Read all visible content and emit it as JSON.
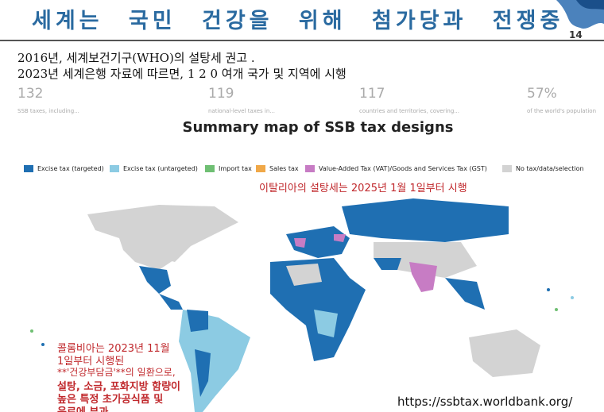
{
  "header": {
    "title": "세계는 국민 건강을 위해 첨가당과 전쟁중",
    "page_number": "14"
  },
  "body": {
    "lines": [
      "2016년, 세계보건기구(WHO)의 설탕세 권고 .",
      "2023년 세계은행 자료에 따르면, 1 2 0 여개 국가 및 지역에 시행"
    ]
  },
  "stats": [
    {
      "number": "132",
      "label": "SSB taxes, including..."
    },
    {
      "number": "119",
      "label": "national-level taxes in..."
    },
    {
      "number": "117",
      "label": "countries and territories, covering..."
    },
    {
      "number": "57%",
      "label": "of the world's population"
    }
  ],
  "map": {
    "title": "Summary map of SSB tax designs",
    "legend": [
      "Excise tax (targeted)",
      "Excise tax (untargeted)",
      "Import tax",
      "Sales tax",
      "Value-Added Tax (VAT)/Goods and Services Tax (GST)",
      "No tax/data/selection"
    ]
  },
  "annotations": {
    "italy": "이탈리아의 설탕세는 2025년 1월 1일부터 시행",
    "colombia": [
      "콜롬비아는 2023년 11월",
      "1일부터 시행된",
      "**'건강부담금'**의 일환으로,",
      "설탕, 소금, 포화지방 함량이",
      "높은 특정 초가공식품 및",
      "음료에 부과"
    ]
  },
  "footer": {
    "url": "https://ssbtax.worldbank.org/"
  }
}
